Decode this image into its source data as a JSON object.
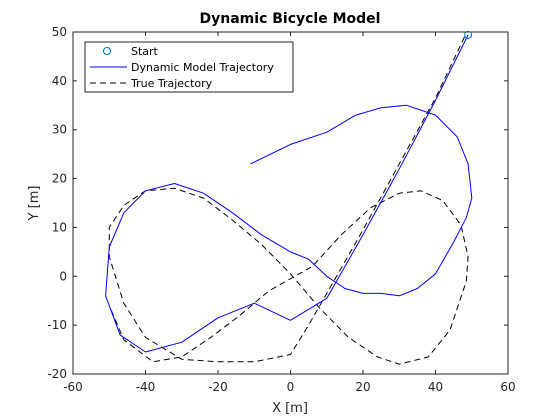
{
  "chart_data": {
    "type": "line",
    "title": "Dynamic Bicycle Model",
    "xlabel": "X [m]",
    "ylabel": "Y [m]",
    "xlim": [
      -60,
      60
    ],
    "ylim": [
      -20,
      50
    ],
    "xticks": [
      -60,
      -40,
      -20,
      0,
      20,
      40,
      60
    ],
    "yticks": [
      -20,
      -10,
      0,
      10,
      20,
      30,
      40,
      50
    ],
    "grid": false,
    "legend_position": "top-left",
    "series": [
      {
        "name": "Start",
        "style": "marker-circle",
        "color": "#0072bd",
        "x": [
          49
        ],
        "y": [
          49.4
        ]
      },
      {
        "name": "Dynamic Model Trajectory",
        "style": "solid",
        "color": "#0000ff",
        "x": [
          49,
          40,
          30,
          20,
          10,
          0,
          -10,
          -20,
          -30,
          -40,
          -47,
          -51,
          -50,
          -46,
          -40,
          -32,
          -24,
          -16,
          -8,
          0,
          5,
          10,
          15,
          20,
          25,
          30,
          35,
          40,
          45,
          48.5,
          50,
          49,
          46,
          40,
          32,
          25,
          18,
          10,
          0,
          -11
        ],
        "y": [
          49.4,
          36,
          22,
          8.5,
          -4.5,
          -9,
          -5.5,
          -8.5,
          -13.5,
          -15.5,
          -12,
          -4,
          6,
          13,
          17.5,
          19,
          17,
          13,
          8.5,
          5,
          3.5,
          0,
          -2.5,
          -3.5,
          -3.5,
          -4,
          -2.5,
          0.5,
          7,
          12,
          16,
          23,
          28.5,
          33,
          35,
          34.5,
          33,
          29.5,
          27,
          23
        ]
      },
      {
        "name": "True Trajectory",
        "style": "dashed",
        "color": "#000000",
        "x": [
          48,
          40,
          30,
          20,
          10,
          5,
          0,
          -10,
          -20,
          -30,
          -40,
          -46,
          -50,
          -50,
          -46,
          -40,
          -32,
          -24,
          -16,
          -8,
          0,
          8,
          16,
          24,
          30,
          38,
          44,
          48.5,
          49,
          47,
          42,
          36,
          30,
          22,
          14,
          6,
          0,
          -6,
          -14,
          -22,
          -30,
          -38,
          -46,
          -50
        ],
        "y": [
          49,
          36.5,
          23,
          9.5,
          -3.5,
          -10,
          -16,
          -17.5,
          -17.5,
          -17,
          -12.5,
          -5.5,
          4,
          10,
          14.5,
          17.5,
          18,
          16,
          11.5,
          6.5,
          0.5,
          -6.5,
          -12.5,
          -16.5,
          -18,
          -16.5,
          -11,
          -1,
          4,
          10.5,
          15.5,
          17.5,
          17,
          14,
          8.5,
          2,
          -0.5,
          -3,
          -8,
          -12.5,
          -16.5,
          -17.5,
          -13,
          -6
        ]
      }
    ]
  }
}
